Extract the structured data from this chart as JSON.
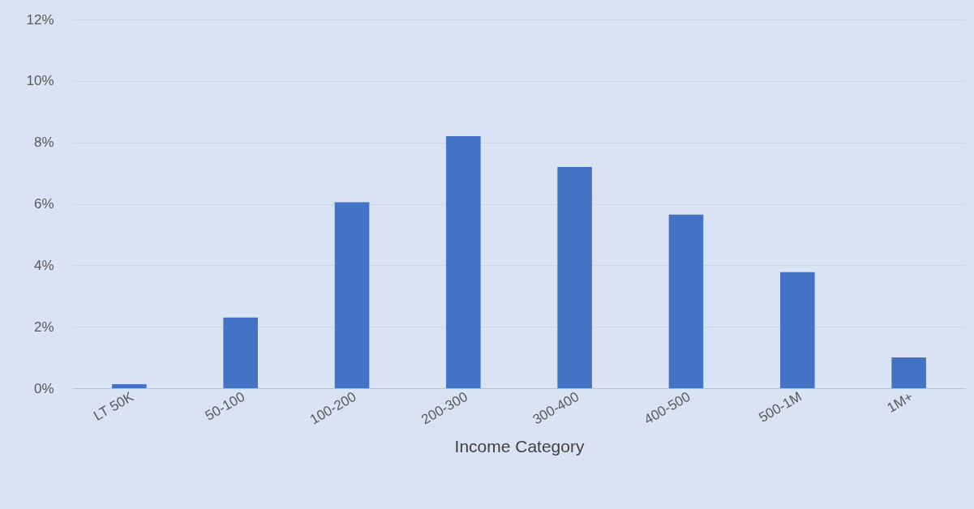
{
  "chart_data": {
    "type": "bar",
    "xlabel": "Income Category",
    "categories": [
      "LT 50K",
      "50-100",
      "100-200",
      "200-300",
      "300-400",
      "400-500",
      "500-1M",
      "1M+"
    ],
    "values": [
      0.13,
      2.3,
      6.05,
      8.2,
      7.2,
      5.65,
      3.78,
      1.0
    ],
    "color": "#4472c4",
    "ylim": [
      0,
      12
    ],
    "yticks": [
      {
        "value": 0,
        "label": "0%"
      },
      {
        "value": 2,
        "label": "2%"
      },
      {
        "value": 4,
        "label": "4%"
      },
      {
        "value": 6,
        "label": "6%"
      },
      {
        "value": 8,
        "label": "8%"
      },
      {
        "value": 10,
        "label": "10%"
      },
      {
        "value": 12,
        "label": "12%"
      }
    ],
    "grid": "y"
  }
}
